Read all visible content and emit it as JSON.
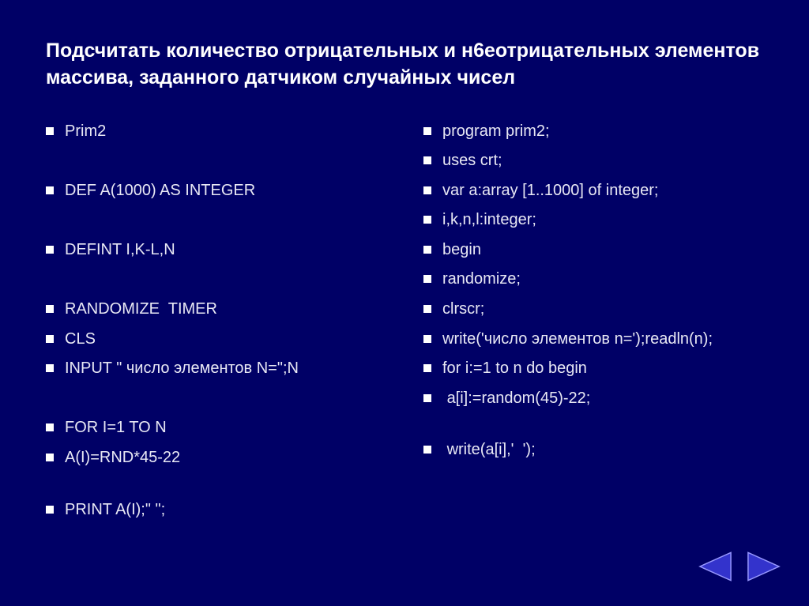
{
  "title": "Подсчитать количество отрицательных и н6еотрицательных элементов массива, заданного датчиком случайных чисел",
  "left_rows": [
    "Prim2",
    "",
    "DEF A(1000) AS INTEGER",
    "",
    "DEFINT I,K-L,N",
    "",
    "RANDOMIZE  TIMER",
    "CLS",
    "INPUT \" число элементов N=\";N",
    "",
    "FOR I=1 TO N",
    "A(I)=RND*45-22",
    "SPACER",
    "PRINT A(I);\" \";"
  ],
  "right_rows": [
    "program prim2;",
    "uses crt;",
    "var a:array [1..1000] of integer;",
    "i,k,n,l:integer;",
    "begin",
    "randomize;",
    "clrscr;",
    "write('число элементов n=');readln(n);",
    "for i:=1 to n do begin",
    " a[i]:=random(45)-22;",
    "SPACER",
    " write(a[i],'  ');"
  ],
  "colors": {
    "background": "#000066",
    "text": "#ffffff",
    "bullet": "#ffffff",
    "arrow_fill": "#3333cc",
    "arrow_stroke": "#9999ff"
  }
}
